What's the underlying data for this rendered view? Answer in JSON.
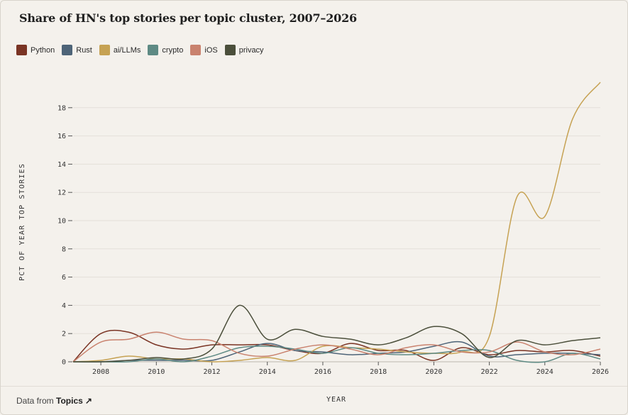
{
  "source": {
    "prefix": "Data from",
    "link_label": "Topics",
    "arrow": "↗"
  },
  "chart_data": {
    "type": "line",
    "title": "Share of HN's top stories per topic cluster, 2007–2026",
    "xlabel": "YEAR",
    "ylabel": "PCT OF YEAR TOP STORIES",
    "xlim": [
      2007,
      2026
    ],
    "ylim": [
      0,
      18
    ],
    "x_ticks": [
      "2008",
      "2010",
      "2012",
      "2014",
      "2016",
      "2018",
      "2020",
      "2022",
      "2024",
      "2026"
    ],
    "y_ticks": [
      "0",
      "2",
      "4",
      "6",
      "8",
      "10",
      "12",
      "14",
      "16",
      "18"
    ],
    "grid": "horizontal",
    "legend_position": "top-left",
    "x": [
      2007,
      2008,
      2009,
      2010,
      2011,
      2012,
      2013,
      2014,
      2015,
      2016,
      2017,
      2018,
      2019,
      2020,
      2021,
      2022,
      2023,
      2024,
      2025,
      2026
    ],
    "series": [
      {
        "name": "Python",
        "color": "#7a3424",
        "values": [
          0,
          2.0,
          2.1,
          1.2,
          0.9,
          1.2,
          1.2,
          1.2,
          0.8,
          0.6,
          1.3,
          0.8,
          0.8,
          0.1,
          1.0,
          0.5,
          0.8,
          0.7,
          0.8,
          0.4
        ]
      },
      {
        "name": "Rust",
        "color": "#4e6478",
        "values": [
          0,
          0,
          0.1,
          0.1,
          0.1,
          0.1,
          0.7,
          1.3,
          0.8,
          0.7,
          0.5,
          0.6,
          0.7,
          1.1,
          1.4,
          0.4,
          0.5,
          0.6,
          0.6,
          0.5
        ]
      },
      {
        "name": "ai/LLMs",
        "color": "#c6a253",
        "values": [
          0,
          0.1,
          0.4,
          0.2,
          0.2,
          0,
          0.1,
          0.3,
          0.1,
          1.1,
          1.0,
          0.9,
          0.7,
          0.6,
          0.7,
          1.8,
          11.7,
          10.3,
          17.2,
          19.8
        ]
      },
      {
        "name": "crypto",
        "color": "#5e8a84",
        "values": [
          0,
          0,
          0,
          0.2,
          0,
          0.4,
          1.0,
          1.1,
          0.9,
          0.6,
          1.0,
          0.6,
          0.5,
          0.6,
          0.8,
          0.8,
          0.1,
          0,
          0.6,
          0.2
        ]
      },
      {
        "name": "iOS",
        "color": "#c9826e",
        "values": [
          0,
          1.4,
          1.6,
          2.1,
          1.6,
          1.5,
          0.6,
          0.4,
          0.9,
          1.2,
          0.9,
          0.5,
          1.0,
          1.2,
          0.7,
          0.7,
          1.4,
          0.7,
          0.5,
          0.9
        ]
      },
      {
        "name": "privacy",
        "color": "#4b4f3b",
        "values": [
          0,
          0,
          0.1,
          0.3,
          0.2,
          0.9,
          4.0,
          1.6,
          2.3,
          1.8,
          1.6,
          1.2,
          1.7,
          2.5,
          2.0,
          0.3,
          1.5,
          1.2,
          1.5,
          1.7
        ]
      }
    ]
  }
}
